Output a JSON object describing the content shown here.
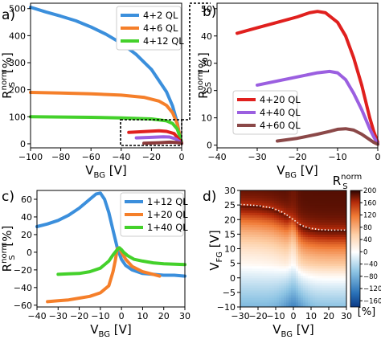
{
  "chart_data": [
    {
      "panel": "a)",
      "type": "line",
      "xlabel_main": "V",
      "xlabel_sub": "BG",
      "xlabel_unit": " [V]",
      "ylabel_main": "R",
      "ylabel_sup": "norm",
      "ylabel_sub": "S",
      "ylabel_unit": " [%]",
      "xlim": [
        -100,
        0
      ],
      "ylim": [
        -15,
        520
      ],
      "xticks": [
        -100,
        -80,
        -60,
        -40,
        -20,
        0
      ],
      "yticks": [
        0,
        100,
        200,
        300,
        400,
        500
      ],
      "legend_position": "top-right",
      "grid": false,
      "series": [
        {
          "name": "4+2  QL",
          "color": "#3b8fdc",
          "x": [
            -100,
            -90,
            -80,
            -70,
            -60,
            -50,
            -40,
            -30,
            -20,
            -10,
            -6,
            -3,
            -1,
            0
          ],
          "y": [
            505,
            488,
            472,
            455,
            432,
            405,
            372,
            330,
            275,
            192,
            140,
            80,
            20,
            3
          ]
        },
        {
          "name": "4+6  QL",
          "color": "#f57f2a",
          "x": [
            -100,
            -80,
            -60,
            -40,
            -25,
            -15,
            -10,
            -6,
            -3,
            -1,
            0
          ],
          "y": [
            190,
            188,
            185,
            180,
            172,
            158,
            142,
            115,
            75,
            25,
            3
          ]
        },
        {
          "name": "4+12 QL",
          "color": "#44d12b",
          "x": [
            -100,
            -80,
            -60,
            -40,
            -20,
            -10,
            -6,
            -3,
            -1,
            0
          ],
          "y": [
            100,
            99,
            98,
            96,
            92,
            85,
            75,
            55,
            25,
            3
          ]
        },
        {
          "name": "",
          "color": "#e0201e",
          "x": [
            -35,
            -25,
            -15,
            -10,
            -5,
            -2,
            0
          ],
          "y": [
            42,
            45,
            48,
            46,
            38,
            18,
            3
          ]
        },
        {
          "name": "",
          "color": "#9b5fe0",
          "x": [
            -30,
            -20,
            -12,
            -8,
            -4,
            -1,
            0
          ],
          "y": [
            22,
            24,
            26,
            25,
            18,
            6,
            2
          ]
        },
        {
          "name": "",
          "color": "#8b3a3a",
          "x": [
            -25,
            -15,
            -8,
            -4,
            -1,
            0
          ],
          "y": [
            2,
            4,
            6,
            5,
            3,
            1
          ]
        }
      ]
    },
    {
      "panel": "b)",
      "type": "line",
      "xlabel_main": "V",
      "xlabel_sub": "BG",
      "xlabel_unit": " [V]",
      "ylabel_main": "R",
      "ylabel_sup": "norm",
      "ylabel_sub": "S",
      "ylabel_unit": " [%]",
      "xlim": [
        -40,
        0
      ],
      "ylim": [
        -1,
        52
      ],
      "xticks": [
        -40,
        -30,
        -20,
        -10,
        0
      ],
      "yticks": [
        0,
        10,
        20,
        30,
        40,
        50
      ],
      "legend_position": "lower-left",
      "grid": false,
      "series": [
        {
          "name": "4+20 QL",
          "color": "#e0201e",
          "x": [
            -35,
            -30,
            -25,
            -20,
            -17,
            -15,
            -13,
            -10,
            -8,
            -6,
            -4,
            -2,
            -1,
            0
          ],
          "y": [
            41,
            43,
            45,
            47,
            48.5,
            49,
            48.5,
            45,
            40,
            32,
            22,
            10,
            5,
            1
          ]
        },
        {
          "name": "4+40 QL",
          "color": "#9b5fe0",
          "x": [
            -30,
            -25,
            -20,
            -15,
            -12,
            -10,
            -8,
            -6,
            -4,
            -2,
            -1,
            0
          ],
          "y": [
            22,
            23.5,
            25,
            26.5,
            27,
            26.5,
            24,
            19,
            13,
            6,
            3,
            0.5
          ]
        },
        {
          "name": "4+60 QL",
          "color": "#8b4848",
          "x": [
            -25,
            -20,
            -15,
            -12,
            -10,
            -8,
            -6,
            -4,
            -2,
            -1,
            0
          ],
          "y": [
            1.5,
            2.5,
            4,
            5,
            5.8,
            6,
            5.5,
            4,
            2,
            1,
            0.3
          ]
        }
      ]
    },
    {
      "panel": "c)",
      "type": "line",
      "xlabel_main": "V",
      "xlabel_sub": "BG",
      "xlabel_unit": " [V]",
      "ylabel_main": "R",
      "ylabel_sup": "norm",
      "ylabel_sub": "S",
      "ylabel_unit": " [%]",
      "xlim": [
        -40,
        30
      ],
      "ylim": [
        -62,
        70
      ],
      "xticks": [
        -40,
        -30,
        -20,
        -10,
        0,
        10,
        20,
        30
      ],
      "yticks": [
        -60,
        -40,
        -20,
        0,
        20,
        40,
        60
      ],
      "legend_position": "top-right",
      "grid": false,
      "series": [
        {
          "name": "1+12 QL",
          "color": "#3b8fdc",
          "x": [
            -40,
            -35,
            -30,
            -25,
            -20,
            -15,
            -12,
            -10,
            -8,
            -6,
            -4,
            -2,
            0,
            2,
            5,
            10,
            15,
            20,
            25,
            30
          ],
          "y": [
            29,
            32,
            36,
            42,
            50,
            60,
            66,
            67,
            60,
            45,
            25,
            5,
            -8,
            -15,
            -20,
            -24,
            -25,
            -26,
            -26,
            -27
          ]
        },
        {
          "name": "1+20 QL",
          "color": "#f57f2a",
          "x": [
            -35,
            -30,
            -25,
            -20,
            -15,
            -10,
            -6,
            -4,
            -3,
            -2,
            -1,
            0,
            2,
            5,
            10,
            15,
            18
          ],
          "y": [
            -56,
            -55,
            -54,
            -52,
            -50,
            -46,
            -38,
            -22,
            -10,
            4,
            5,
            0,
            -8,
            -16,
            -22,
            -25,
            -27
          ]
        },
        {
          "name": "1+40 QL",
          "color": "#44d12b",
          "x": [
            -30,
            -25,
            -20,
            -15,
            -10,
            -6,
            -4,
            -2,
            -1,
            0,
            1,
            3,
            6,
            10,
            15,
            20,
            25,
            30
          ],
          "y": [
            -25,
            -24.5,
            -24,
            -22,
            -18,
            -10,
            -3,
            3,
            5,
            3,
            0,
            -4,
            -8,
            -10,
            -12,
            -13,
            -13.5,
            -14
          ]
        }
      ]
    },
    {
      "panel": "d)",
      "type": "heatmap",
      "xlabel_main": "V",
      "xlabel_sub": "BG",
      "xlabel_unit": " [V]",
      "ylabel_main": "V",
      "ylabel_sub": "FG",
      "ylabel_unit": " [V]",
      "xlim": [
        -30,
        30
      ],
      "ylim": [
        -10,
        30
      ],
      "xticks": [
        -30,
        -20,
        -10,
        0,
        10,
        20,
        30
      ],
      "yticks": [
        -10,
        -5,
        0,
        5,
        10,
        15,
        20,
        25,
        30
      ],
      "colorbar_label_main": "R",
      "colorbar_label_sup": "norm",
      "colorbar_label_sub": "S",
      "colorbar_unit": "[%]",
      "colorbar_ticks": [
        200,
        160,
        120,
        80,
        40,
        0,
        -40,
        -80,
        -120,
        -160
      ],
      "colorbar_range": [
        -180,
        200
      ],
      "dotted_line": {
        "x": [
          -30,
          -20,
          -12,
          -6,
          0,
          4,
          8,
          14,
          20,
          26,
          30
        ],
        "y": [
          25.2,
          24.8,
          24.0,
          22.5,
          20.0,
          18.2,
          17.2,
          16.6,
          16.4,
          16.4,
          16.4
        ]
      }
    }
  ],
  "labels": {
    "a": "a)",
    "b": "b)",
    "c": "c)",
    "d": "d)"
  }
}
